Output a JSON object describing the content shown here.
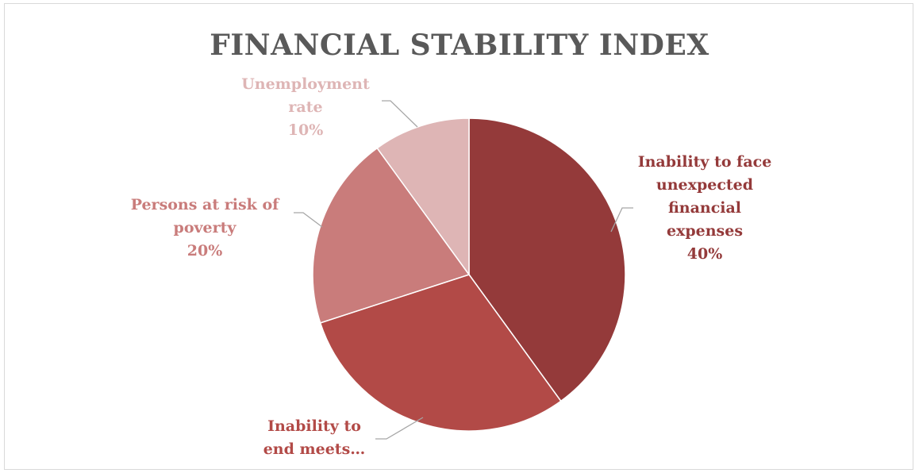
{
  "chart_data": {
    "type": "pie",
    "title": "FINANCIAL STABILITY INDEX",
    "slices": [
      {
        "label_lines": [
          "Inability to face",
          "unexpected",
          "financial",
          "expenses"
        ],
        "percent_label": "40%",
        "value": 40,
        "color": "#943A3A"
      },
      {
        "label_lines": [
          "Inability to",
          "end meets…"
        ],
        "percent_label": "",
        "value": 30,
        "color": "#B24A47"
      },
      {
        "label_lines": [
          "Persons at risk of",
          "poverty"
        ],
        "percent_label": "20%",
        "value": 20,
        "color": "#C97C7B"
      },
      {
        "label_lines": [
          "Unemployment",
          "rate"
        ],
        "percent_label": "10%",
        "value": 10,
        "color": "#DEB5B5"
      }
    ],
    "label_colors": [
      "#943A3A",
      "#B24A47",
      "#C97C7B",
      "#DEB5B5"
    ],
    "leader_line_color": "#a6a6a6",
    "legend": "none"
  }
}
